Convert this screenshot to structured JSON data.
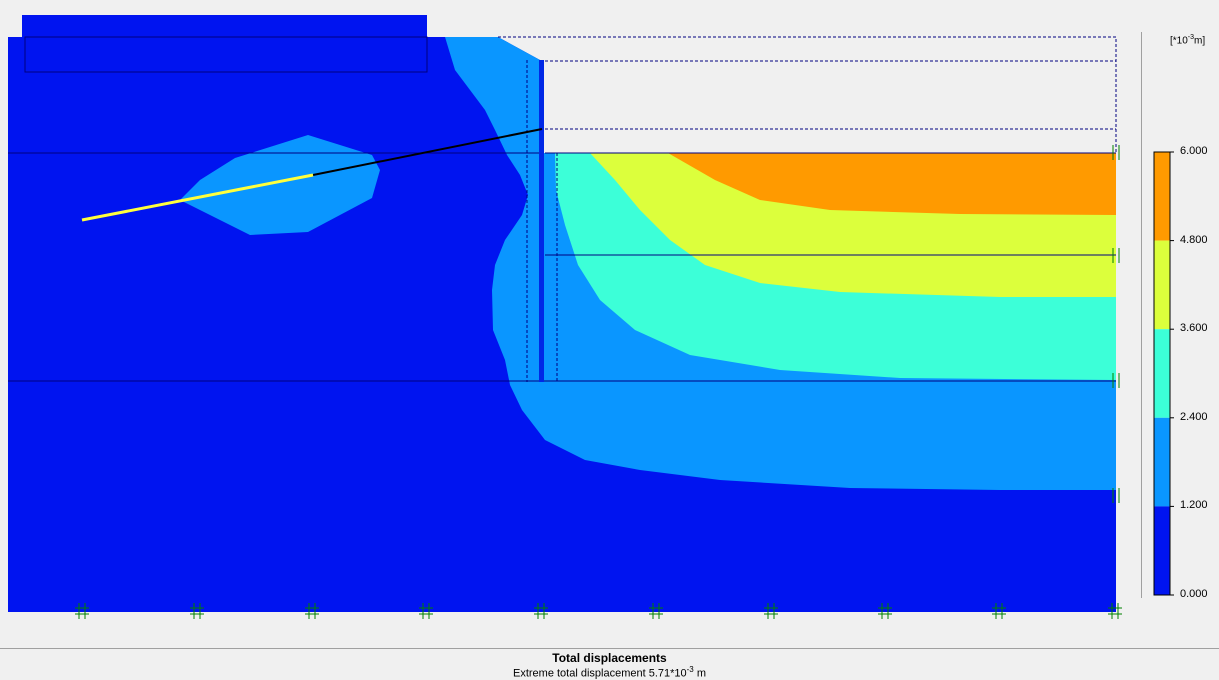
{
  "legend": {
    "unit_prefix": "[*10",
    "unit_exp": "-3",
    "unit_suffix": "m]",
    "ticks": [
      "6.000",
      "4.800",
      "3.600",
      "2.400",
      "1.200",
      "0.000"
    ],
    "colors": [
      "#ff9a00",
      "#dcff3c",
      "#3cffd8",
      "#0a96ff",
      "#0014f0"
    ]
  },
  "footer": {
    "title": "Total displacements",
    "subtitle_prefix": "Extreme total displacement 5.71*10",
    "subtitle_exp": "-3",
    "subtitle_suffix": " m"
  },
  "colors": {
    "background": "#f0f0f0",
    "soil_base": "#0014f0",
    "wall": "#0028e6",
    "anchor_free": "#000000",
    "anchor_grout": "#ffff3c",
    "fixity": "#008000",
    "mesh_dashed": "#000080"
  }
}
